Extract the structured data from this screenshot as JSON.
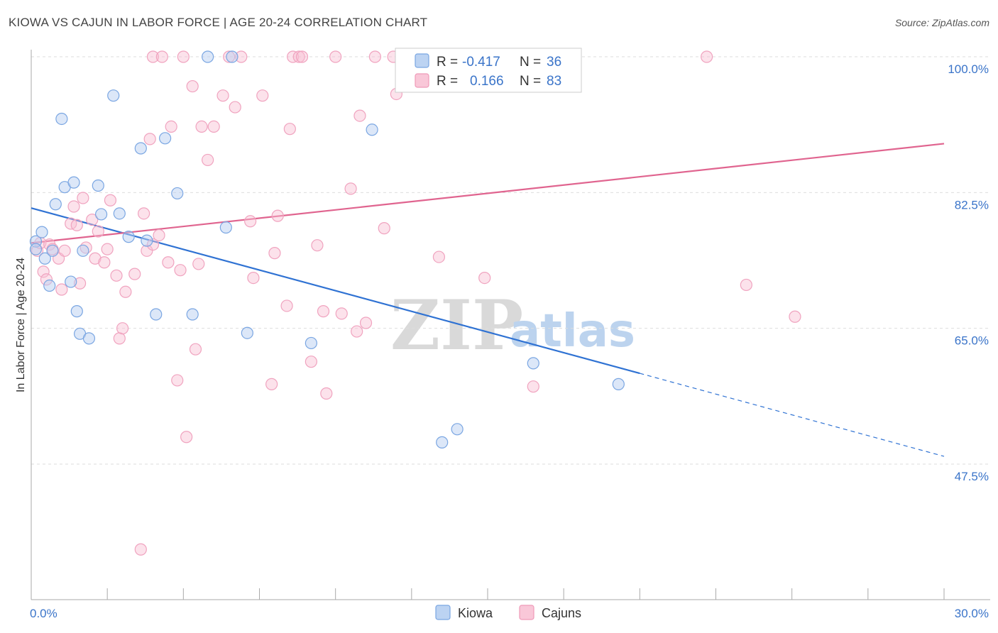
{
  "header": {
    "title": "KIOWA VS CAJUN IN LABOR FORCE | AGE 20-24 CORRELATION CHART",
    "source": "Source: ZipAtlas.com"
  },
  "watermark": {
    "zip": "ZIP",
    "atlas": "atlas"
  },
  "legend": {
    "rows": [
      {
        "r_label": "R =",
        "r_value": "-0.417",
        "n_label": "N =",
        "n_value": "36"
      },
      {
        "r_label": "R =",
        "r_value": "0.166",
        "n_label": "N =",
        "n_value": "83"
      }
    ]
  },
  "chart_data": {
    "type": "scatter",
    "title": "KIOWA VS CAJUN IN LABOR FORCE | AGE 20-24 CORRELATION CHART",
    "xlabel": "",
    "ylabel": "In Labor Force | Age 20-24",
    "xlim": [
      0,
      30
    ],
    "ylim": [
      30,
      101
    ],
    "x_ticks": [
      {
        "value": 0,
        "label": "0.0%"
      },
      {
        "value": 30,
        "label": "30.0%"
      }
    ],
    "y_ticks": [
      {
        "value": 100,
        "label": "100.0%"
      },
      {
        "value": 82.5,
        "label": "82.5%"
      },
      {
        "value": 65,
        "label": "65.0%"
      },
      {
        "value": 47.5,
        "label": "47.5%"
      }
    ],
    "grid": true,
    "legend_position": "top-center",
    "colors": {
      "kiowa": "#6fa0e0",
      "kiowa_line": "#2f72d3",
      "cajuns": "#f08fb0",
      "cajuns_line": "#e0648f"
    },
    "series": [
      {
        "name": "Kiowa",
        "r": -0.417,
        "n": 36,
        "trend": {
          "x0": 0,
          "y0": 80.5,
          "x1": 20.0,
          "y1": 59.2,
          "dash_to_x": 30,
          "dash_to_y": 48.5
        },
        "points": [
          [
            0.15,
            76.2
          ],
          [
            0.15,
            75.2
          ],
          [
            0.35,
            77.4
          ],
          [
            0.45,
            74.0
          ],
          [
            0.6,
            70.5
          ],
          [
            0.8,
            81.0
          ],
          [
            1.0,
            92.0
          ],
          [
            1.1,
            83.2
          ],
          [
            0.7,
            75.0
          ],
          [
            1.4,
            83.8
          ],
          [
            1.5,
            67.2
          ],
          [
            1.6,
            64.3
          ],
          [
            1.7,
            75.0
          ],
          [
            1.9,
            63.7
          ],
          [
            1.3,
            71.0
          ],
          [
            2.2,
            83.4
          ],
          [
            2.3,
            79.7
          ],
          [
            2.7,
            95.0
          ],
          [
            2.9,
            79.8
          ],
          [
            3.2,
            76.8
          ],
          [
            3.6,
            88.2
          ],
          [
            3.8,
            76.3
          ],
          [
            4.1,
            66.8
          ],
          [
            4.4,
            89.5
          ],
          [
            4.8,
            82.4
          ],
          [
            5.3,
            66.8
          ],
          [
            5.8,
            100.0
          ],
          [
            6.4,
            78.0
          ],
          [
            6.6,
            100.0
          ],
          [
            7.1,
            64.4
          ],
          [
            9.2,
            63.1
          ],
          [
            11.2,
            90.6
          ],
          [
            13.5,
            50.3
          ],
          [
            14.0,
            52.0
          ],
          [
            16.5,
            60.5
          ],
          [
            19.3,
            57.8
          ]
        ]
      },
      {
        "name": "Cajuns",
        "r": 0.166,
        "n": 83,
        "trend": {
          "x0": 0,
          "y0": 76.0,
          "x1": 30,
          "y1": 88.8
        },
        "points": [
          [
            0.2,
            75.0
          ],
          [
            0.3,
            76.0
          ],
          [
            0.4,
            72.3
          ],
          [
            0.5,
            71.3
          ],
          [
            0.6,
            75.8
          ],
          [
            0.7,
            75.2
          ],
          [
            0.9,
            74.0
          ],
          [
            1.0,
            70.0
          ],
          [
            1.1,
            75.0
          ],
          [
            1.3,
            78.5
          ],
          [
            1.4,
            80.7
          ],
          [
            1.5,
            78.3
          ],
          [
            1.6,
            70.8
          ],
          [
            1.7,
            81.8
          ],
          [
            1.8,
            75.4
          ],
          [
            2.0,
            79.0
          ],
          [
            2.1,
            74.0
          ],
          [
            2.2,
            77.5
          ],
          [
            2.4,
            73.5
          ],
          [
            2.5,
            75.2
          ],
          [
            2.6,
            81.5
          ],
          [
            2.8,
            71.8
          ],
          [
            2.9,
            63.7
          ],
          [
            3.0,
            65.0
          ],
          [
            3.1,
            69.7
          ],
          [
            3.4,
            72.0
          ],
          [
            3.6,
            36.5
          ],
          [
            3.7,
            79.8
          ],
          [
            3.8,
            75.0
          ],
          [
            3.9,
            89.4
          ],
          [
            4.0,
            75.8
          ],
          [
            4.2,
            77.0
          ],
          [
            4.0,
            100.0
          ],
          [
            4.3,
            100.0
          ],
          [
            4.5,
            73.5
          ],
          [
            4.6,
            91.0
          ],
          [
            4.8,
            58.3
          ],
          [
            4.9,
            72.5
          ],
          [
            5.1,
            51.0
          ],
          [
            5.3,
            96.2
          ],
          [
            5.4,
            62.3
          ],
          [
            5.5,
            73.3
          ],
          [
            5.6,
            91.0
          ],
          [
            5.8,
            86.7
          ],
          [
            6.0,
            91.0
          ],
          [
            6.3,
            95.0
          ],
          [
            6.5,
            100.0
          ],
          [
            6.7,
            93.5
          ],
          [
            6.9,
            100.0
          ],
          [
            7.2,
            78.8
          ],
          [
            7.3,
            71.5
          ],
          [
            7.6,
            95.0
          ],
          [
            7.9,
            57.8
          ],
          [
            8.0,
            74.7
          ],
          [
            8.1,
            79.5
          ],
          [
            8.4,
            67.9
          ],
          [
            8.5,
            90.7
          ],
          [
            8.6,
            100.0
          ],
          [
            8.8,
            100.0
          ],
          [
            8.9,
            100.0
          ],
          [
            9.2,
            60.7
          ],
          [
            9.4,
            75.7
          ],
          [
            9.6,
            67.2
          ],
          [
            9.7,
            56.6
          ],
          [
            10.2,
            66.9
          ],
          [
            10.5,
            83.0
          ],
          [
            10.7,
            64.6
          ],
          [
            10.8,
            92.4
          ],
          [
            11.0,
            65.7
          ],
          [
            11.3,
            100.0
          ],
          [
            11.6,
            77.9
          ],
          [
            11.9,
            100.0
          ],
          [
            12.0,
            95.2
          ],
          [
            12.4,
            100.0
          ],
          [
            13.4,
            74.2
          ],
          [
            14.9,
            71.5
          ],
          [
            15.0,
            100.0
          ],
          [
            16.5,
            57.5
          ],
          [
            22.2,
            100.0
          ],
          [
            23.5,
            70.6
          ],
          [
            25.1,
            66.5
          ],
          [
            10.0,
            100.0
          ],
          [
            5.0,
            100.0
          ]
        ]
      }
    ]
  }
}
